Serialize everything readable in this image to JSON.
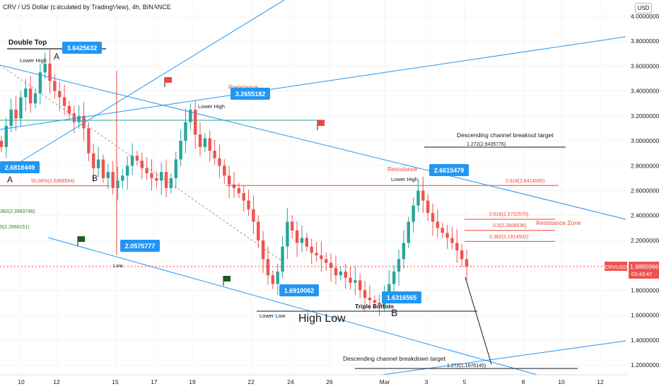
{
  "header": {
    "title": "CRV / US Dollar (calculated by TradingView), 4h, BINANCE",
    "currency_badge": "USD"
  },
  "chart_data": {
    "type": "candlestick",
    "symbol": "CRVUSD",
    "interval": "4h",
    "exchange": "BINANCE",
    "ylim": [
      1.05,
      4.18
    ],
    "y_ticks": [
      "4.0000000",
      "3.8000000",
      "3.6000000",
      "3.4000000",
      "3.2000000",
      "3.0000000",
      "2.8000000",
      "2.6000000",
      "2.4000000",
      "2.2000000",
      "2.0000000",
      "1.8000000",
      "1.6000000",
      "1.4000000",
      "1.2000000"
    ],
    "x_ticks": [
      "10",
      "12",
      "15",
      "17",
      "19",
      "22",
      "24",
      "26",
      "Mar",
      "3",
      "5",
      "8",
      "10",
      "12"
    ],
    "last_price": {
      "label": "CRVUSD",
      "value": "1.9895966",
      "countdown": "03:43:47"
    },
    "close_path": [
      2.95,
      3.12,
      3.25,
      3.18,
      3.35,
      3.42,
      3.3,
      3.38,
      3.55,
      3.62,
      3.48,
      3.4,
      3.35,
      3.28,
      3.22,
      3.15,
      3.2,
      3.1,
      2.9,
      2.78,
      2.85,
      2.7,
      2.75,
      2.62,
      2.68,
      2.72,
      2.8,
      2.88,
      2.84,
      2.78,
      2.74,
      2.7,
      2.68,
      2.75,
      2.62,
      2.7,
      2.85,
      3.0,
      3.15,
      3.25,
      3.05,
      2.95,
      3.02,
      2.92,
      2.86,
      2.8,
      2.72,
      2.65,
      2.62,
      2.58,
      2.52,
      2.45,
      2.35,
      2.2,
      2.05,
      1.92,
      1.85,
      1.95,
      2.15,
      2.35,
      2.28,
      2.18,
      2.22,
      2.15,
      2.1,
      2.08,
      2.05,
      2.02,
      1.98,
      1.92,
      1.95,
      1.9,
      1.86,
      1.88,
      1.8,
      1.74,
      1.72,
      1.7,
      1.68,
      1.75,
      1.85,
      1.95,
      2.05,
      2.18,
      2.35,
      2.48,
      2.6,
      2.52,
      2.42,
      2.35,
      2.3,
      2.26,
      2.22,
      2.18,
      2.12,
      2.05,
      1.99
    ],
    "annotations": {
      "double_top": "Double Top",
      "labels_A": [
        "A",
        "A"
      ],
      "labels_B": [
        "B",
        "B",
        "B"
      ],
      "lower_high": "Lower High",
      "low": "Low",
      "lower_low": "Lower Low",
      "high_low": "High Low",
      "triple_bottom": "Triple Bottom",
      "resistance": "Resistance",
      "resistance_zone": "Resistance Zone",
      "channel_breakout_target": "Descending channel breakout target",
      "channel_breakout_value": "1.272(2.9435776)",
      "channel_breakdown_target": "Descending channel breakdown target",
      "channel_breakdown_value": "1.272(1.1676145)",
      "fib_50_left": "50.00%(2.6388554)",
      "fib_382_left": "382(2.3993746)",
      "fib_5_left": "5(2.2668151)",
      "fib_0618_top": "0.618(2.6414035)",
      "fib_0618": "0.618(2.3702570)",
      "fib_05": "0.5(2.2808536)",
      "fib_0382": "0.382(2.1914502)"
    },
    "price_callouts": [
      "3.6425632",
      "3.2655182",
      "2.6818449",
      "2.6615479",
      "2.0575777",
      "1.6910062",
      "1.6316565"
    ]
  },
  "colors": {
    "up": "#26a69a",
    "down": "#ef5350",
    "trendline": "#2196f3",
    "fib_line": "#f44336",
    "callout_bg": "#2196f3",
    "flag_red": "#f44336",
    "flag_green": "#1b5e20"
  }
}
